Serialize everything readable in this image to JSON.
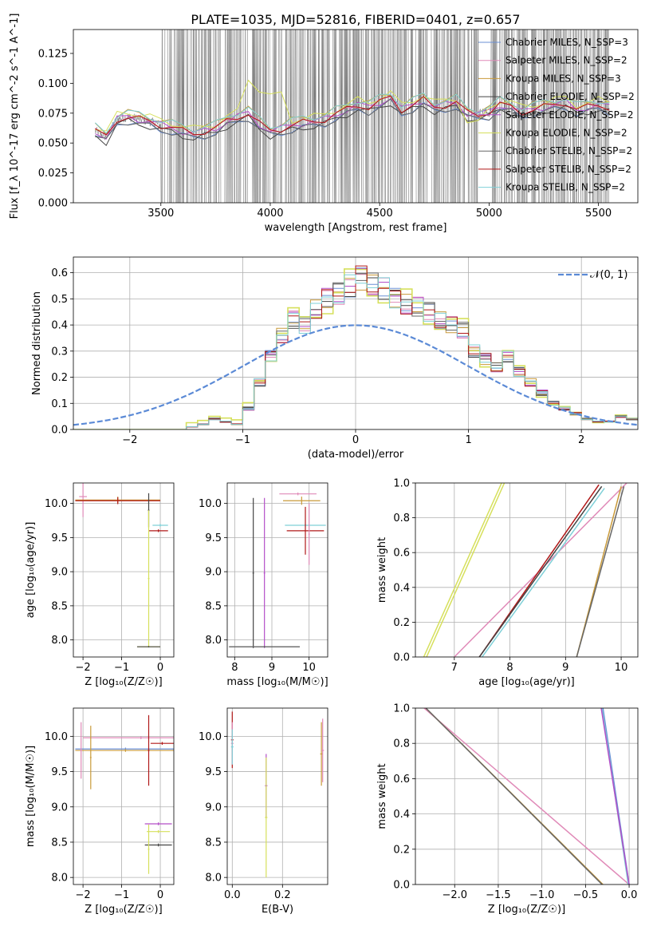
{
  "figure": {
    "title": "PLATE=1035, MJD=52816, FIBERID=0401, z=0.657"
  },
  "model_colors": [
    "#6a8fd6",
    "#e08ab8",
    "#c99a3a",
    "#444444",
    "#b44ec8",
    "#d6e05c",
    "#666666",
    "#b01818",
    "#7fd0d8"
  ],
  "chart_data": [
    {
      "id": "spectrum",
      "type": "line",
      "title": "PLATE=1035, MJD=52816, FIBERID=0401, z=0.657",
      "xlabel": "wavelength [Angstrom, rest frame]",
      "ylabel": "Flux [f_λ 10^-17 erg cm^-2 s^-1 A^-1]",
      "xlim": [
        3100,
        5680
      ],
      "ylim": [
        0,
        0.145
      ],
      "xticks": [
        3500,
        4000,
        4500,
        5000,
        5500
      ],
      "yticks": [
        0.0,
        0.025,
        0.05,
        0.075,
        0.1,
        0.125
      ],
      "legend_position": "upper-right",
      "series": [
        {
          "name": "Chabrier MILES, N_SSP=3",
          "color": "#6a8fd6"
        },
        {
          "name": "Salpeter MILES, N_SSP=2",
          "color": "#e08ab8"
        },
        {
          "name": "Kroupa MILES, N_SSP=3",
          "color": "#c99a3a"
        },
        {
          "name": "Chabrier ELODIE, N_SSP=2",
          "color": "#444444"
        },
        {
          "name": "Salpeter ELODIE, N_SSP=2",
          "color": "#b44ec8"
        },
        {
          "name": "Kroupa ELODIE, N_SSP=2",
          "color": "#d6e05c"
        },
        {
          "name": "Chabrier STELIB, N_SSP=2",
          "color": "#666666"
        },
        {
          "name": "Salpeter STELIB, N_SSP=2",
          "color": "#b01818"
        },
        {
          "name": "Kroupa STELIB, N_SSP=2",
          "color": "#7fd0d8"
        }
      ],
      "data_series": {
        "name": "data",
        "color": "#808080",
        "x_range": [
          3200,
          5560
        ],
        "note_level": [
          3200,
          0.06
        ],
        "model_x": [
          3200,
          3250,
          3300,
          3350,
          3400,
          3450,
          3500,
          3550,
          3600,
          3650,
          3700,
          3750,
          3800,
          3850,
          3900,
          3950,
          4000,
          4050,
          4100,
          4150,
          4200,
          4250,
          4300,
          4350,
          4400,
          4450,
          4500,
          4550,
          4600,
          4650,
          4700,
          4750,
          4800,
          4850,
          4900,
          4950,
          5000,
          5050,
          5100,
          5150,
          5200,
          5250,
          5300,
          5350,
          5400,
          5450,
          5500,
          5550
        ],
        "model_y": [
          0.06,
          0.055,
          0.07,
          0.072,
          0.07,
          0.068,
          0.065,
          0.063,
          0.06,
          0.058,
          0.06,
          0.062,
          0.068,
          0.072,
          0.075,
          0.066,
          0.06,
          0.062,
          0.065,
          0.067,
          0.068,
          0.07,
          0.074,
          0.078,
          0.082,
          0.08,
          0.084,
          0.088,
          0.078,
          0.082,
          0.086,
          0.08,
          0.082,
          0.084,
          0.075,
          0.074,
          0.076,
          0.082,
          0.08,
          0.076,
          0.078,
          0.08,
          0.082,
          0.084,
          0.078,
          0.08,
          0.082,
          0.08
        ]
      }
    },
    {
      "id": "residuals",
      "type": "line",
      "xlabel": "(data-model)/error",
      "ylabel": "Normed distribution",
      "xlim": [
        -2.5,
        2.5
      ],
      "ylim": [
        0,
        0.66
      ],
      "xticks": [
        -2,
        -1,
        0,
        1,
        2
      ],
      "yticks": [
        0.0,
        0.1,
        0.2,
        0.3,
        0.4,
        0.5,
        0.6
      ],
      "legend_position": "upper-right",
      "legend": [
        "𝒩(0, 1)"
      ],
      "gaussian": {
        "mu": 0,
        "sigma": 1,
        "color": "#5b8ad6"
      },
      "hist_bin_edges": [
        -2.5,
        -2.4,
        -2.3,
        -2.2,
        -2.1,
        -2.0,
        -1.9,
        -1.8,
        -1.7,
        -1.6,
        -1.5,
        -1.4,
        -1.3,
        -1.2,
        -1.1,
        -1.0,
        -0.9,
        -0.8,
        -0.7,
        -0.6,
        -0.5,
        -0.4,
        -0.3,
        -0.2,
        -0.1,
        0.0,
        0.1,
        0.2,
        0.3,
        0.4,
        0.5,
        0.6,
        0.7,
        0.8,
        0.9,
        1.0,
        1.1,
        1.2,
        1.3,
        1.4,
        1.5,
        1.6,
        1.7,
        1.8,
        1.9,
        2.0,
        2.1,
        2.2,
        2.3,
        2.4,
        2.5
      ],
      "hist_reference": [
        0,
        0,
        0,
        0,
        0,
        0,
        0,
        0,
        0,
        0,
        0.01,
        0.02,
        0.04,
        0.03,
        0.02,
        0.08,
        0.18,
        0.28,
        0.36,
        0.42,
        0.4,
        0.46,
        0.5,
        0.52,
        0.55,
        0.58,
        0.56,
        0.54,
        0.5,
        0.48,
        0.47,
        0.45,
        0.42,
        0.4,
        0.38,
        0.3,
        0.27,
        0.24,
        0.28,
        0.22,
        0.18,
        0.14,
        0.1,
        0.08,
        0.06,
        0.04,
        0.03,
        0.03,
        0.05,
        0.04,
        0.03
      ]
    },
    {
      "id": "age-vs-Z",
      "type": "scatter",
      "xlabel": "Z [log₁₀(Z/Z☉)]",
      "ylabel": "age  [log₁₀(age/yr)]",
      "xlim": [
        -2.25,
        0.35
      ],
      "ylim": [
        7.75,
        10.3
      ],
      "xticks": [
        -2,
        -1,
        0
      ],
      "yticks": [
        8.0,
        8.5,
        9.0,
        9.5,
        10.0
      ]
    },
    {
      "id": "age-vs-mass",
      "type": "scatter",
      "xlabel": "mass [log₁₀(M/M☉)]",
      "ylabel": "",
      "xlim": [
        7.8,
        10.5
      ],
      "ylim": [
        7.75,
        10.3
      ],
      "xticks": [
        8,
        9,
        10
      ],
      "yticks": [
        8.0,
        8.5,
        9.0,
        9.5,
        10.0
      ]
    },
    {
      "id": "weight-vs-age",
      "type": "line",
      "xlabel": "age  [log₁₀(age/yr)]",
      "ylabel": "mass weight",
      "xlim": [
        6.3,
        10.3
      ],
      "ylim": [
        0,
        1
      ],
      "xticks": [
        7,
        8,
        9,
        10
      ],
      "yticks": [
        0.0,
        0.2,
        0.4,
        0.6,
        0.8,
        1.0
      ]
    },
    {
      "id": "mass-vs-Z",
      "type": "scatter",
      "xlabel": "Z [log₁₀(Z/Z☉)]",
      "ylabel": "mass [log₁₀(M/M☉)]",
      "xlim": [
        -2.25,
        0.35
      ],
      "ylim": [
        7.9,
        10.4
      ],
      "xticks": [
        -2,
        -1,
        0
      ],
      "yticks": [
        8.0,
        8.5,
        9.0,
        9.5,
        10.0
      ]
    },
    {
      "id": "mass-vs-ebv",
      "type": "scatter",
      "xlabel": "E(B-V)",
      "ylabel": "",
      "xlim": [
        -0.02,
        0.38
      ],
      "ylim": [
        7.9,
        10.4
      ],
      "xticks": [
        0.0,
        0.2
      ],
      "yticks": [
        8.0,
        8.5,
        9.0,
        9.5,
        10.0
      ]
    },
    {
      "id": "weight-vs-Z",
      "type": "line",
      "xlabel": "Z [log₁₀(Z/Z☉)]",
      "ylabel": "mass weight",
      "xlim": [
        -2.45,
        0.1
      ],
      "ylim": [
        0,
        1
      ],
      "xticks": [
        -2.0,
        -1.5,
        -1.0,
        -0.5,
        0.0
      ],
      "yticks": [
        0.0,
        0.2,
        0.4,
        0.6,
        0.8,
        1.0
      ]
    }
  ]
}
